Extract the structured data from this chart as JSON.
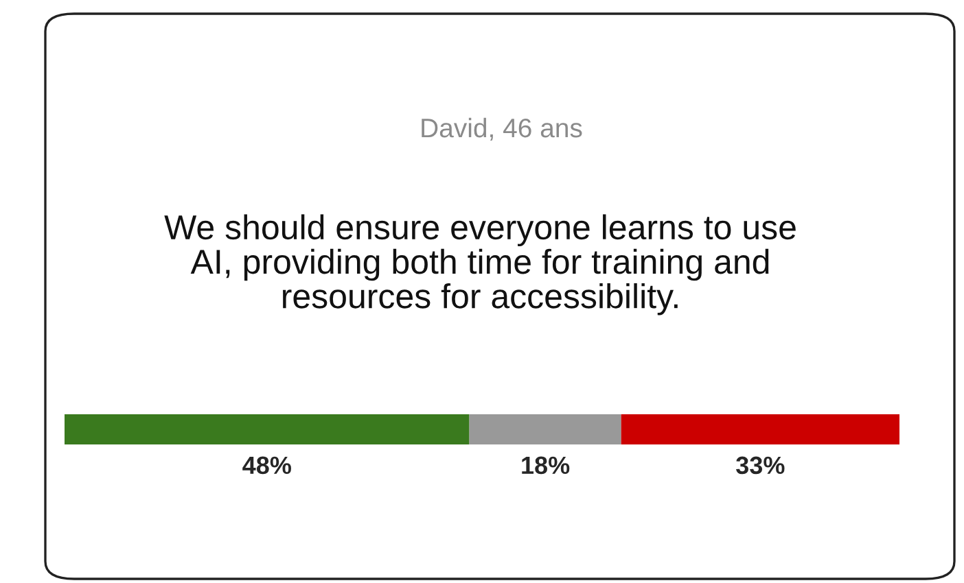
{
  "chart_data": {
    "type": "bar",
    "orientation": "horizontal",
    "stacked": true,
    "title": "David, 46 ans",
    "subtitle": "We should ensure everyone learns to use\nAI, providing both time for training and\nresources for accessibility.",
    "categories": [
      null
    ],
    "series": [
      {
        "color": "#3a7a1e",
        "values": [
          48
        ],
        "value_labels": [
          "48%"
        ]
      },
      {
        "color": "#999999",
        "values": [
          18
        ],
        "value_labels": [
          "18%"
        ]
      },
      {
        "color": "#cc0000",
        "values": [
          33
        ],
        "value_labels": [
          "33%"
        ]
      }
    ],
    "tick_labels": false
  }
}
